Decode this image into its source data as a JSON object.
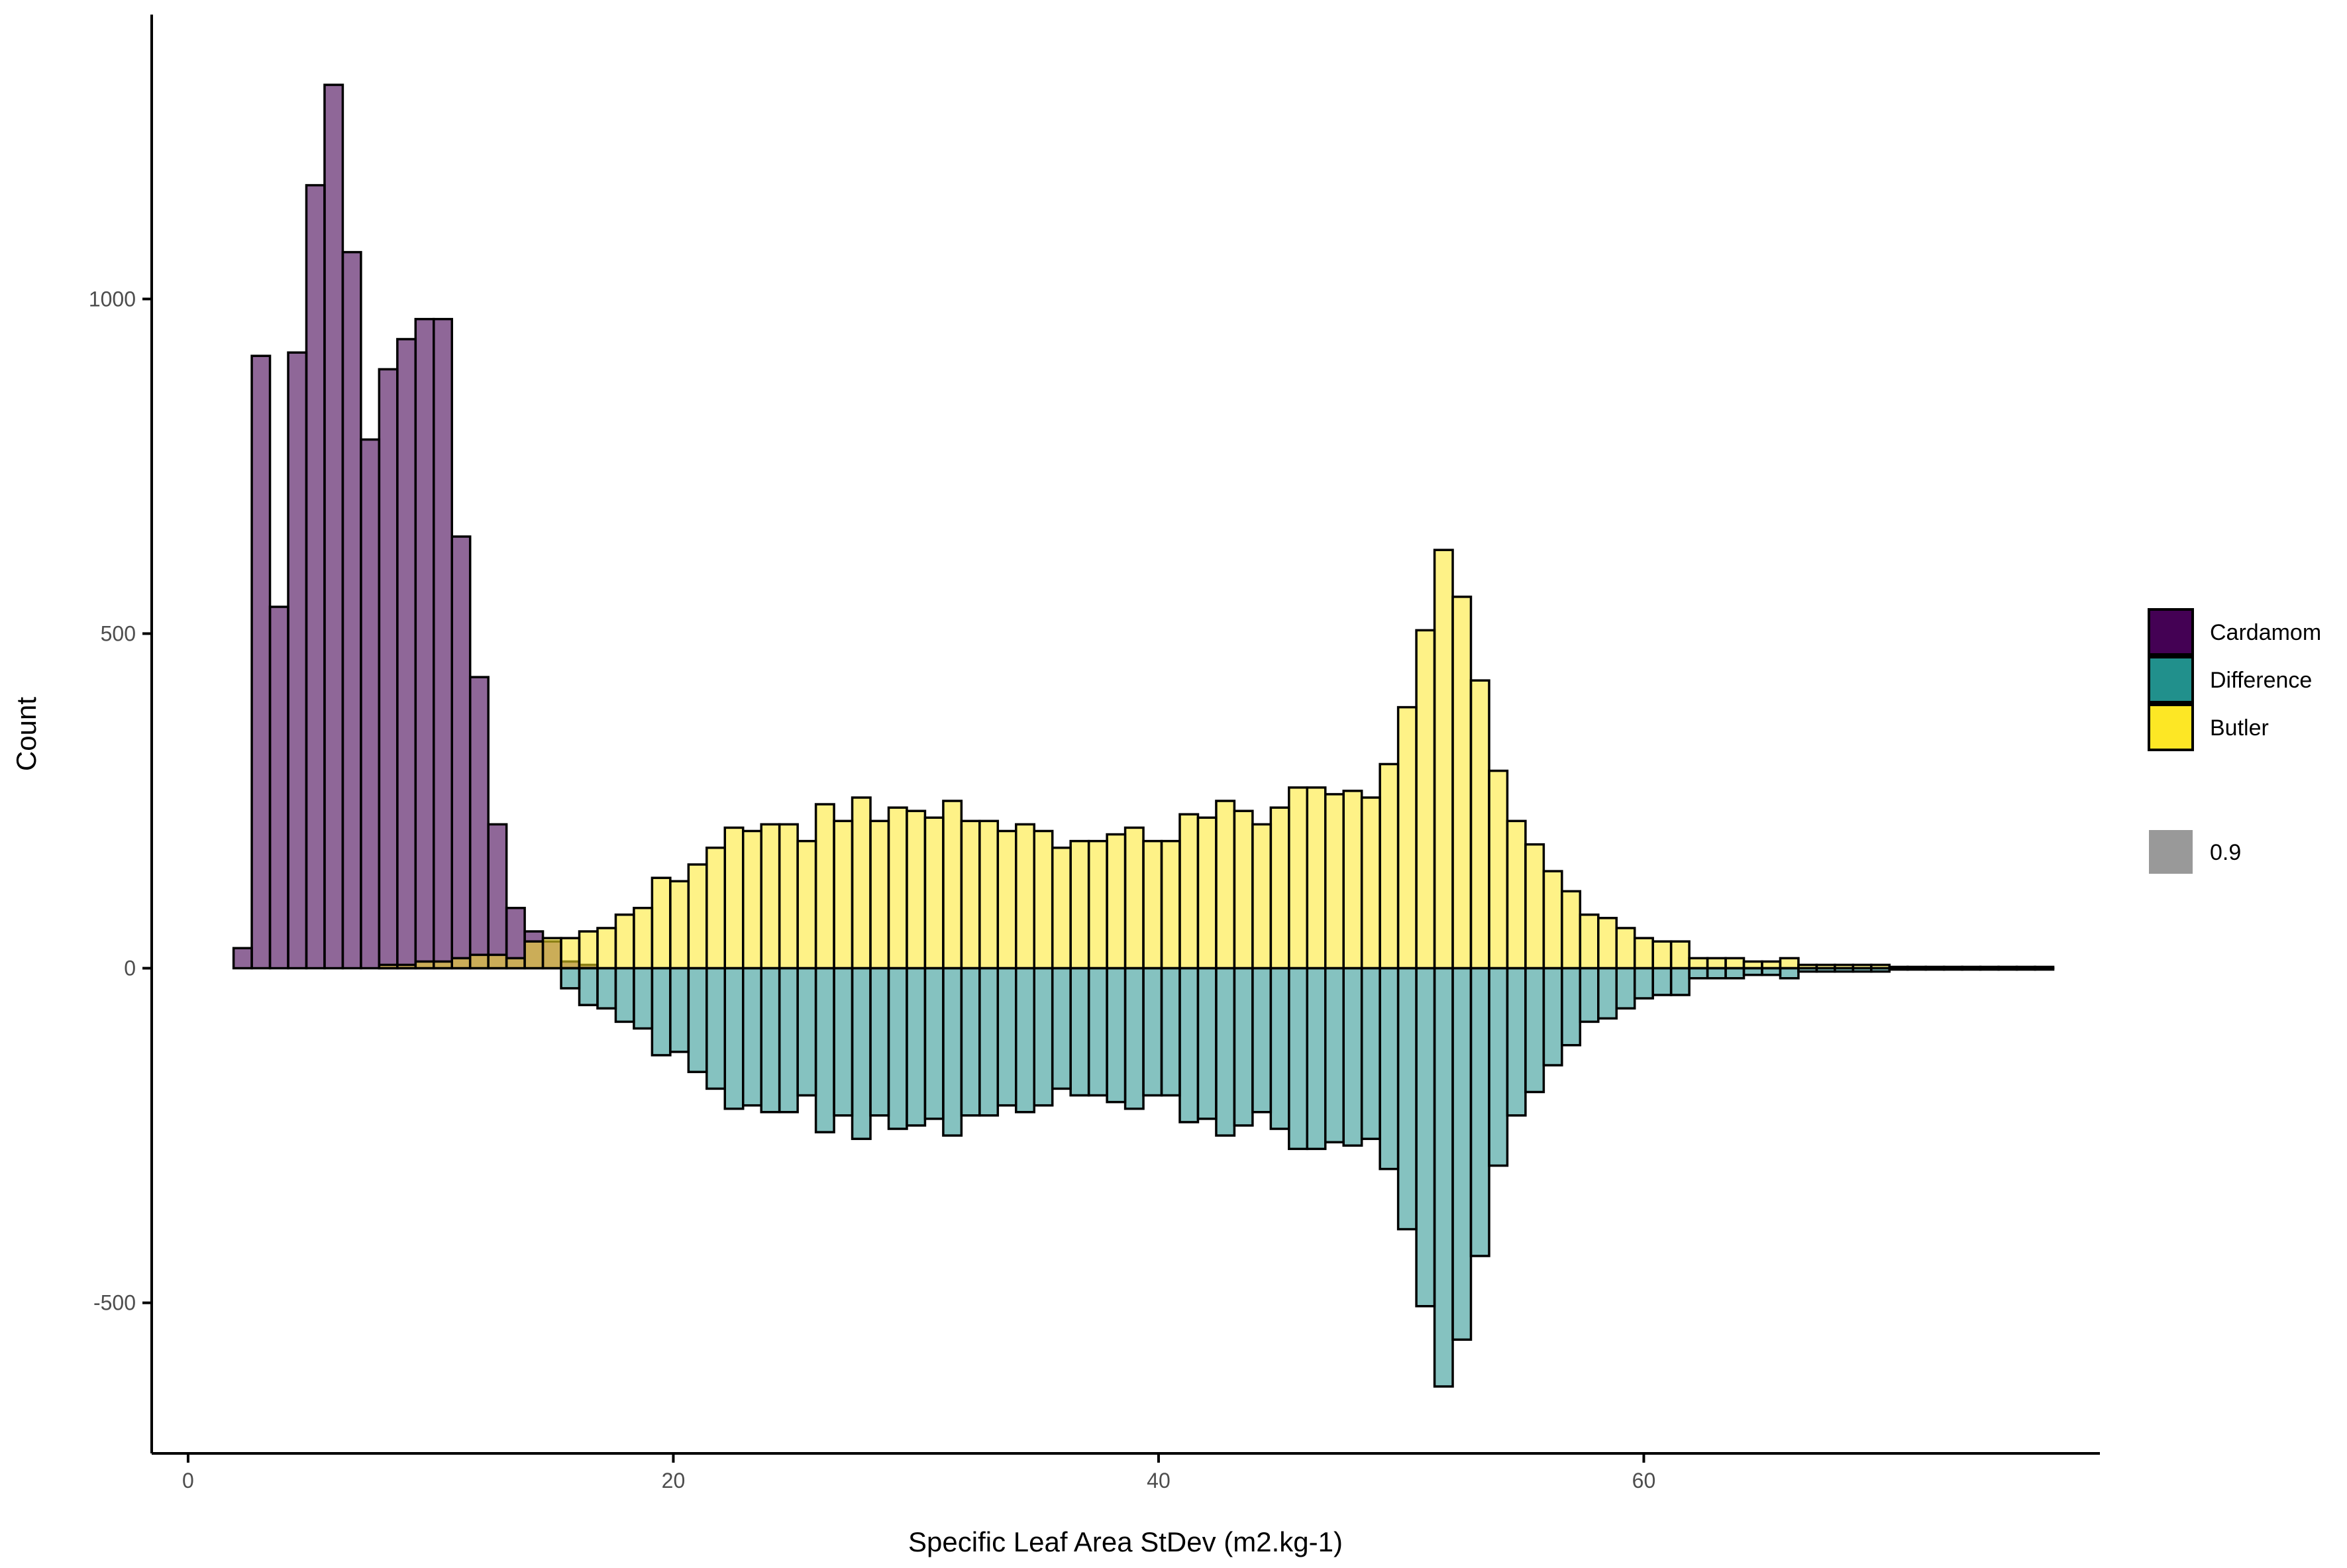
{
  "chart_data": {
    "type": "bar",
    "subtype": "mirrored histogram",
    "xlabel": "Specific Leaf Area StDev (m2.kg-1)",
    "ylabel": "Count",
    "xlim": [
      -1.5,
      78.8
    ],
    "ylim": [
      -725,
      1425
    ],
    "x_ticks": [
      0,
      20,
      40,
      60
    ],
    "y_ticks": [
      -500,
      0,
      500,
      1000
    ],
    "y_tick_labels": [
      "-500",
      "0",
      "500",
      "1000"
    ],
    "grid": false,
    "bin_width": 0.75,
    "x_start": 1.875,
    "legend_position": "right",
    "legend_alpha_label": "0.9",
    "colors": {
      "Cardamom": "#440154",
      "Difference": "#21908C",
      "Butler": "#FDE725",
      "alpha_swatch": "#999999",
      "bar_outline": "#000000"
    },
    "series": [
      {
        "name": "Cardamom",
        "values": [
          30,
          915,
          540,
          920,
          1170,
          1320,
          1070,
          790,
          895,
          940,
          970,
          970,
          645,
          435,
          215,
          90,
          55,
          40,
          10,
          5,
          0,
          0,
          0,
          0,
          0,
          0,
          0,
          0,
          0,
          0,
          0,
          0,
          0,
          0,
          0,
          0,
          0,
          0,
          0,
          0,
          0,
          0,
          0,
          0,
          0,
          0,
          0,
          0,
          0,
          0,
          0,
          0,
          0,
          0,
          0,
          0,
          0,
          0,
          0,
          0,
          0,
          0,
          0,
          0,
          0,
          0,
          0,
          0,
          0,
          0,
          0,
          0,
          0,
          0,
          0,
          0,
          0,
          0,
          0,
          0,
          0,
          0,
          0,
          0,
          0,
          0,
          0,
          0,
          0,
          0,
          0,
          0,
          0,
          0,
          0,
          0,
          0,
          0,
          0,
          0
        ]
      },
      {
        "name": "Butler",
        "values": [
          0,
          0,
          0,
          0,
          0,
          0,
          0,
          0,
          5,
          5,
          10,
          10,
          15,
          20,
          20,
          15,
          40,
          45,
          45,
          55,
          60,
          80,
          90,
          135,
          130,
          155,
          180,
          210,
          205,
          215,
          215,
          190,
          245,
          220,
          255,
          220,
          240,
          235,
          225,
          250,
          220,
          220,
          205,
          215,
          205,
          180,
          190,
          190,
          200,
          210,
          190,
          190,
          230,
          225,
          250,
          235,
          215,
          240,
          270,
          270,
          260,
          265,
          255,
          305,
          390,
          505,
          625,
          555,
          430,
          295,
          220,
          185,
          145,
          115,
          80,
          75,
          60,
          45,
          40,
          40,
          15,
          15,
          15,
          10,
          10,
          15,
          5,
          5,
          5,
          5,
          5,
          2,
          2,
          2,
          2,
          2,
          2,
          2,
          2,
          2
        ]
      },
      {
        "name": "Difference",
        "values": [
          0,
          0,
          0,
          0,
          0,
          0,
          0,
          0,
          0,
          0,
          0,
          0,
          0,
          0,
          0,
          0,
          0,
          0,
          -30,
          -55,
          -60,
          -80,
          -90,
          -130,
          -125,
          -155,
          -180,
          -210,
          -205,
          -215,
          -215,
          -190,
          -245,
          -220,
          -255,
          -220,
          -240,
          -235,
          -225,
          -250,
          -220,
          -220,
          -205,
          -215,
          -205,
          -180,
          -190,
          -190,
          -200,
          -210,
          -190,
          -190,
          -230,
          -225,
          -250,
          -235,
          -215,
          -240,
          -270,
          -270,
          -260,
          -265,
          -255,
          -300,
          -390,
          -505,
          -625,
          -555,
          -430,
          -295,
          -220,
          -185,
          -145,
          -115,
          -80,
          -75,
          -60,
          -45,
          -40,
          -40,
          -15,
          -15,
          -15,
          -10,
          -10,
          -15,
          -5,
          -5,
          -5,
          -5,
          -5,
          -2,
          -2,
          -2,
          -2,
          -2,
          -2,
          -2,
          -2,
          -2
        ]
      }
    ]
  },
  "legend": {
    "items": [
      {
        "label": "Cardamom"
      },
      {
        "label": "Difference"
      },
      {
        "label": "Butler"
      }
    ],
    "alpha_item": {
      "label": "0.9"
    }
  }
}
